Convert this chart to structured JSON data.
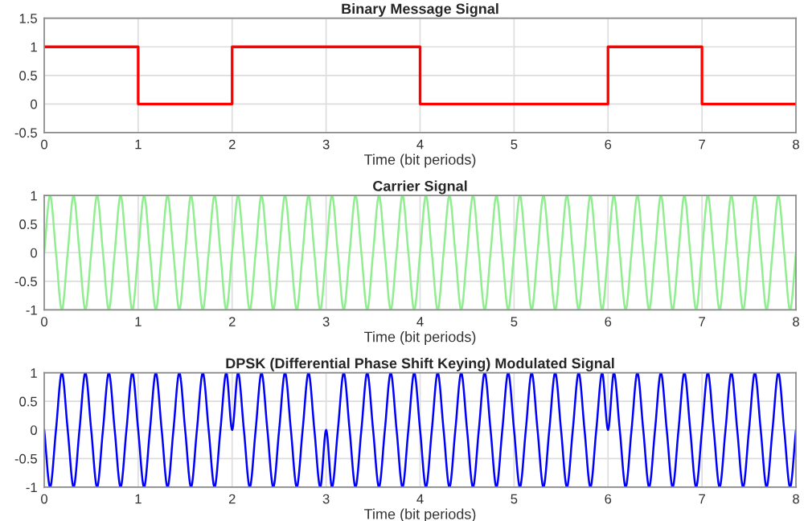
{
  "chart_data": [
    {
      "type": "step",
      "title": "Binary Message Signal",
      "xlabel": "Time (bit periods)",
      "x": [
        0,
        1,
        2,
        3,
        4,
        5,
        6,
        7,
        8
      ],
      "values": [
        1,
        0,
        1,
        1,
        0,
        0,
        1,
        0,
        0
      ],
      "color": "#ff0000",
      "xlim": [
        0,
        8
      ],
      "ylim": [
        -0.5,
        1.5
      ],
      "xticks": [
        0,
        1,
        2,
        3,
        4,
        5,
        6,
        7,
        8
      ],
      "yticks": [
        -0.5,
        0,
        0.5,
        1,
        1.5
      ],
      "grid": true
    },
    {
      "type": "line",
      "title": "Carrier Signal",
      "xlabel": "Time (bit periods)",
      "x": [
        0,
        0.0625,
        0.125,
        0.1875,
        0.25,
        0.3125,
        0.375,
        0.4375,
        0.5,
        0.5625,
        0.625,
        0.6875,
        0.75,
        0.8125,
        0.875,
        0.9375,
        1,
        1.0625,
        1.125,
        1.1875,
        1.25,
        1.3125,
        1.375,
        1.4375,
        1.5,
        1.5625,
        1.625,
        1.6875,
        1.75,
        1.8125,
        1.875,
        1.9375,
        2,
        2.0625,
        2.125,
        2.1875,
        2.25,
        2.3125,
        2.375,
        2.4375,
        2.5,
        2.5625,
        2.625,
        2.6875,
        2.75,
        2.8125,
        2.875,
        2.9375,
        3,
        3.0625,
        3.125,
        3.1875,
        3.25,
        3.3125,
        3.375,
        3.4375,
        3.5,
        3.5625,
        3.625,
        3.6875,
        3.75,
        3.8125,
        3.875,
        3.9375,
        4,
        4.0625,
        4.125,
        4.1875,
        4.25,
        4.3125,
        4.375,
        4.4375,
        4.5,
        4.5625,
        4.625,
        4.6875,
        4.75,
        4.8125,
        4.875,
        4.9375,
        5,
        5.0625,
        5.125,
        5.1875,
        5.25,
        5.3125,
        5.375,
        5.4375,
        5.5,
        5.5625,
        5.625,
        5.6875,
        5.75,
        5.8125,
        5.875,
        5.9375,
        6,
        6.0625,
        6.125,
        6.1875,
        6.25,
        6.3125,
        6.375,
        6.4375,
        6.5,
        6.5625,
        6.625,
        6.6875,
        6.75,
        6.8125,
        6.875,
        6.9375,
        7,
        7.0625,
        7.125,
        7.1875,
        7.25,
        7.3125,
        7.375,
        7.4375,
        7.5,
        7.5625,
        7.625,
        7.6875,
        7.75,
        7.8125,
        7.875,
        7.9375,
        8
      ],
      "values": [
        0,
        1,
        0,
        -1,
        0,
        1,
        0,
        -1,
        0,
        1,
        0,
        -1,
        0,
        1,
        0,
        -1,
        0,
        1,
        0,
        -1,
        0,
        1,
        0,
        -1,
        0,
        1,
        0,
        -1,
        0,
        1,
        0,
        -1,
        0,
        1,
        0,
        -1,
        0,
        1,
        0,
        -1,
        0,
        1,
        0,
        -1,
        0,
        1,
        0,
        -1,
        0,
        1,
        0,
        -1,
        0,
        1,
        0,
        -1,
        0,
        1,
        0,
        -1,
        0,
        1,
        0,
        -1,
        0,
        1,
        0,
        -1,
        0,
        1,
        0,
        -1,
        0,
        1,
        0,
        -1,
        0,
        1,
        0,
        -1,
        0,
        1,
        0,
        -1,
        0,
        1,
        0,
        -1,
        0,
        1,
        0,
        -1,
        0,
        1,
        0,
        -1,
        0,
        1,
        0,
        -1,
        0,
        1,
        0,
        -1,
        0,
        1,
        0,
        -1,
        0,
        1,
        0,
        -1,
        0,
        1,
        0,
        -1,
        0,
        1,
        0,
        -1,
        0,
        1,
        0,
        -1,
        0,
        1,
        0,
        -1,
        0
      ],
      "color": "#90ee90",
      "xlim": [
        0,
        8
      ],
      "ylim": [
        -1,
        1
      ],
      "xticks": [
        0,
        1,
        2,
        3,
        4,
        5,
        6,
        7,
        8
      ],
      "yticks": [
        -1,
        -0.5,
        0,
        0.5,
        1
      ],
      "grid": true
    },
    {
      "type": "line",
      "title": "DPSK (Differential Phase Shift Keying) Modulated Signal",
      "xlabel": "Time (bit periods)",
      "x": [
        0,
        0.0625,
        0.125,
        0.1875,
        0.25,
        0.3125,
        0.375,
        0.4375,
        0.5,
        0.5625,
        0.625,
        0.6875,
        0.75,
        0.8125,
        0.875,
        0.9375,
        1,
        1.0625,
        1.125,
        1.1875,
        1.25,
        1.3125,
        1.375,
        1.4375,
        1.5,
        1.5625,
        1.625,
        1.6875,
        1.75,
        1.8125,
        1.875,
        1.9375,
        2,
        2.0625,
        2.125,
        2.1875,
        2.25,
        2.3125,
        2.375,
        2.4375,
        2.5,
        2.5625,
        2.625,
        2.6875,
        2.75,
        2.8125,
        2.875,
        2.9375,
        3,
        3.0625,
        3.125,
        3.1875,
        3.25,
        3.3125,
        3.375,
        3.4375,
        3.5,
        3.5625,
        3.625,
        3.6875,
        3.75,
        3.8125,
        3.875,
        3.9375,
        4,
        4.0625,
        4.125,
        4.1875,
        4.25,
        4.3125,
        4.375,
        4.4375,
        4.5,
        4.5625,
        4.625,
        4.6875,
        4.75,
        4.8125,
        4.875,
        4.9375,
        5,
        5.0625,
        5.125,
        5.1875,
        5.25,
        5.3125,
        5.375,
        5.4375,
        5.5,
        5.5625,
        5.625,
        5.6875,
        5.75,
        5.8125,
        5.875,
        5.9375,
        6,
        6.0625,
        6.125,
        6.1875,
        6.25,
        6.3125,
        6.375,
        6.4375,
        6.5,
        6.5625,
        6.625,
        6.6875,
        6.75,
        6.8125,
        6.875,
        6.9375,
        7,
        7.0625,
        7.125,
        7.1875,
        7.25,
        7.3125,
        7.375,
        7.4375,
        7.5,
        7.5625,
        7.625,
        7.6875,
        7.75,
        7.8125,
        7.875,
        7.9375,
        8
      ],
      "values": [
        0,
        -1,
        0,
        1,
        0,
        -1,
        0,
        1,
        0,
        -1,
        0,
        1,
        0,
        -1,
        0,
        1,
        0,
        -1,
        0,
        1,
        0,
        -1,
        0,
        1,
        0,
        -1,
        0,
        1,
        0,
        -1,
        0,
        1,
        0,
        1,
        0,
        -1,
        0,
        1,
        0,
        -1,
        0,
        1,
        0,
        -1,
        0,
        1,
        0,
        -1,
        0,
        -1,
        0,
        1,
        0,
        -1,
        0,
        1,
        0,
        -1,
        0,
        1,
        0,
        -1,
        0,
        1,
        0,
        -1,
        0,
        1,
        0,
        -1,
        0,
        1,
        0,
        -1,
        0,
        1,
        0,
        -1,
        0,
        1,
        0,
        -1,
        0,
        1,
        0,
        -1,
        0,
        1,
        0,
        -1,
        0,
        1,
        0,
        -1,
        0,
        1,
        0,
        1,
        0,
        -1,
        0,
        1,
        0,
        -1,
        0,
        1,
        0,
        -1,
        0,
        1,
        0,
        -1,
        0,
        1,
        0,
        -1,
        0,
        1,
        0,
        -1,
        0,
        1,
        0,
        -1,
        0,
        1,
        0,
        -1,
        0
      ],
      "color": "#0000ff",
      "xlim": [
        0,
        8
      ],
      "ylim": [
        -1,
        1
      ],
      "xticks": [
        0,
        1,
        2,
        3,
        4,
        5,
        6,
        7,
        8
      ],
      "yticks": [
        -1,
        -0.5,
        0,
        0.5,
        1
      ],
      "grid": true
    }
  ]
}
